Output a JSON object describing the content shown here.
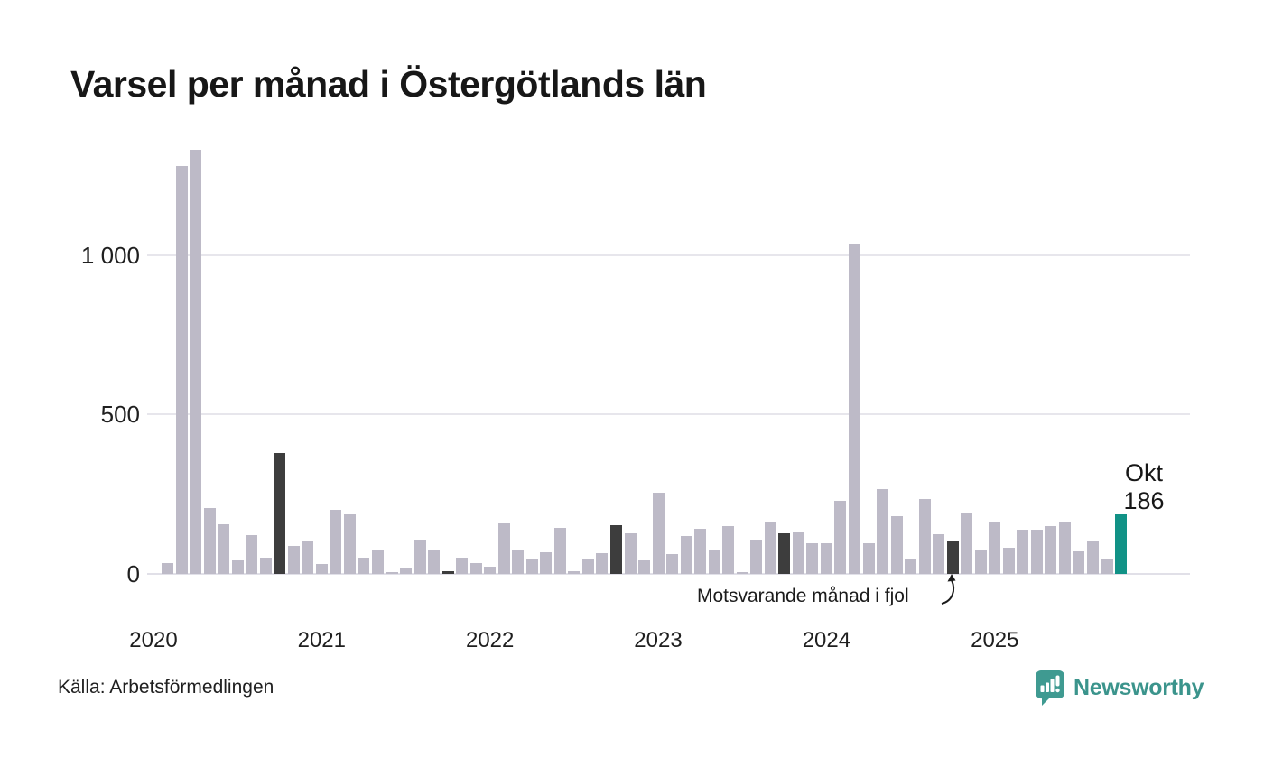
{
  "title": "Varsel per månad i Östergötlands län",
  "source": "Källa: Arbetsförmedlingen",
  "annotation": {
    "label": "Motsvarande månad i fjol"
  },
  "current_point": {
    "month_label": "Okt",
    "value_label": "186"
  },
  "branding": {
    "logo_name": "newsworthy-logo",
    "logo_text": "Newsworthy"
  },
  "colors": {
    "bar": "#bdbac7",
    "highlight_dark": "#3d3d3d",
    "highlight_current": "#119286",
    "grid": "#e7e6ec",
    "text": "#1f1f1f",
    "logo_teal": "#3F9A91"
  },
  "chart_data": {
    "type": "bar",
    "title": "Varsel per månad i Östergötlands län",
    "xlabel": "",
    "ylabel": "",
    "ylim": [
      0,
      1330
    ],
    "ytick_values": [
      0,
      500,
      1000
    ],
    "ytick_labels": [
      "0",
      "500",
      "1 000"
    ],
    "xtick_labels": [
      "2020",
      "2021",
      "2022",
      "2023",
      "2024",
      "2025"
    ],
    "legend": "none",
    "grid": "horizontal",
    "highlight_rule": "october-each-year-dark, latest-month-teal",
    "months": [
      "2020-02",
      "2020-03",
      "2020-04",
      "2020-05",
      "2020-06",
      "2020-07",
      "2020-08",
      "2020-09",
      "2020-10",
      "2020-11",
      "2020-12",
      "2021-01",
      "2021-02",
      "2021-03",
      "2021-04",
      "2021-05",
      "2021-06",
      "2021-07",
      "2021-08",
      "2021-09",
      "2021-10",
      "2021-11",
      "2021-12",
      "2022-01",
      "2022-02",
      "2022-03",
      "2022-04",
      "2022-05",
      "2022-06",
      "2022-07",
      "2022-08",
      "2022-09",
      "2022-10",
      "2022-11",
      "2022-12",
      "2023-01",
      "2023-02",
      "2023-03",
      "2023-04",
      "2023-05",
      "2023-06",
      "2023-07",
      "2023-08",
      "2023-09",
      "2023-10",
      "2023-11",
      "2023-12",
      "2024-01",
      "2024-02",
      "2024-03",
      "2024-04",
      "2024-05",
      "2024-06",
      "2024-07",
      "2024-08",
      "2024-09",
      "2024-10",
      "2024-11",
      "2024-12",
      "2025-01",
      "2025-02",
      "2025-03",
      "2025-04",
      "2025-05",
      "2025-06",
      "2025-07",
      "2025-08",
      "2025-09",
      "2025-10"
    ],
    "values": [
      33,
      1280,
      1330,
      206,
      155,
      43,
      123,
      50,
      380,
      87,
      101,
      30,
      200,
      188,
      52,
      73,
      7,
      21,
      108,
      77,
      10,
      50,
      35,
      24,
      158,
      77,
      47,
      69,
      144,
      10,
      49,
      65,
      153,
      128,
      43,
      255,
      63,
      119,
      142,
      73,
      149,
      6,
      107,
      161,
      128,
      131,
      96,
      95,
      230,
      1035,
      95,
      267,
      182,
      49,
      234,
      126,
      102,
      192,
      77,
      165,
      82,
      140,
      140,
      150,
      160,
      70,
      105,
      45,
      186
    ]
  }
}
